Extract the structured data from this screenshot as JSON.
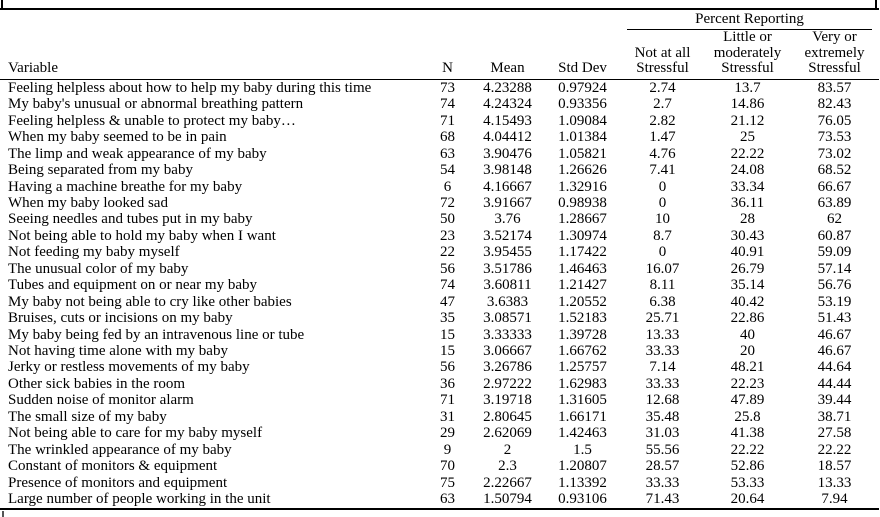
{
  "colors": {
    "text": "#000000",
    "border": "#000000",
    "background": "#ffffff"
  },
  "table": {
    "group_header": "Percent Reporting",
    "headers": {
      "variable": "Variable",
      "n": "N",
      "mean": "Mean",
      "std_dev": "Std Dev",
      "not_at_all": "Not at all\nStressful",
      "little_moderately": "Little or\nmoderately\nStressful",
      "very_extremely": "Very or\nextremely\nStressful"
    },
    "rows": [
      [
        "Feeling helpless about how to help my baby during this time",
        "73",
        "4.23288",
        "0.97924",
        "2.74",
        "13.7",
        "83.57"
      ],
      [
        "My baby's unusual or abnormal breathing pattern",
        "74",
        "4.24324",
        "0.93356",
        "2.7",
        "14.86",
        "82.43"
      ],
      [
        "Feeling helpless & unable to protect my baby…",
        "71",
        "4.15493",
        "1.09084",
        "2.82",
        "21.12",
        "76.05"
      ],
      [
        "When my baby seemed to be in pain",
        "68",
        "4.04412",
        "1.01384",
        "1.47",
        "25",
        "73.53"
      ],
      [
        "The limp and weak appearance of my baby",
        "63",
        "3.90476",
        "1.05821",
        "4.76",
        "22.22",
        "73.02"
      ],
      [
        "Being separated from my baby",
        "54",
        "3.98148",
        "1.26626",
        "7.41",
        "24.08",
        "68.52"
      ],
      [
        "Having a machine breathe for my baby",
        "6",
        "4.16667",
        "1.32916",
        "0",
        "33.34",
        "66.67"
      ],
      [
        "When my baby looked sad",
        "72",
        "3.91667",
        "0.98938",
        "0",
        "36.11",
        "63.89"
      ],
      [
        "Seeing needles and tubes put in my baby",
        "50",
        "3.76",
        "1.28667",
        "10",
        "28",
        "62"
      ],
      [
        "Not being able to hold my baby when I want",
        "23",
        "3.52174",
        "1.30974",
        "8.7",
        "30.43",
        "60.87"
      ],
      [
        "Not feeding my baby myself",
        "22",
        "3.95455",
        "1.17422",
        "0",
        "40.91",
        "59.09"
      ],
      [
        "The unusual color of my baby",
        "56",
        "3.51786",
        "1.46463",
        "16.07",
        "26.79",
        "57.14"
      ],
      [
        "Tubes and equipment on or near my baby",
        "74",
        "3.60811",
        "1.21427",
        "8.11",
        "35.14",
        "56.76"
      ],
      [
        "My baby not being able to cry like other babies",
        "47",
        "3.6383",
        "1.20552",
        "6.38",
        "40.42",
        "53.19"
      ],
      [
        "Bruises, cuts or incisions on my baby",
        "35",
        "3.08571",
        "1.52183",
        "25.71",
        "22.86",
        "51.43"
      ],
      [
        "My baby being fed by an intravenous line or tube",
        "15",
        "3.33333",
        "1.39728",
        "13.33",
        "40",
        "46.67"
      ],
      [
        "Not having time alone with my baby",
        "15",
        "3.06667",
        "1.66762",
        "33.33",
        "20",
        "46.67"
      ],
      [
        "Jerky or restless movements of my baby",
        "56",
        "3.26786",
        "1.25757",
        "7.14",
        "48.21",
        "44.64"
      ],
      [
        "Other sick babies in the room",
        "36",
        "2.97222",
        "1.62983",
        "33.33",
        "22.23",
        "44.44"
      ],
      [
        "Sudden noise of monitor alarm",
        "71",
        "3.19718",
        "1.31605",
        "12.68",
        "47.89",
        "39.44"
      ],
      [
        "The small size of my baby",
        "31",
        "2.80645",
        "1.66171",
        "35.48",
        "25.8",
        "38.71"
      ],
      [
        "Not being able to care for my baby myself",
        "29",
        "2.62069",
        "1.42463",
        "31.03",
        "41.38",
        "27.58"
      ],
      [
        "The wrinkled appearance of my baby",
        "9",
        "2",
        "1.5",
        "55.56",
        "22.22",
        "22.22"
      ],
      [
        "Constant of monitors & equipment",
        "70",
        "2.3",
        "1.20807",
        "28.57",
        "52.86",
        "18.57"
      ],
      [
        "Presence of monitors and equipment",
        "75",
        "2.22667",
        "1.13392",
        "33.33",
        "53.33",
        "13.33"
      ],
      [
        "Large number of people working in the unit",
        "63",
        "1.50794",
        "0.93106",
        "71.43",
        "20.64",
        "7.94"
      ]
    ]
  }
}
